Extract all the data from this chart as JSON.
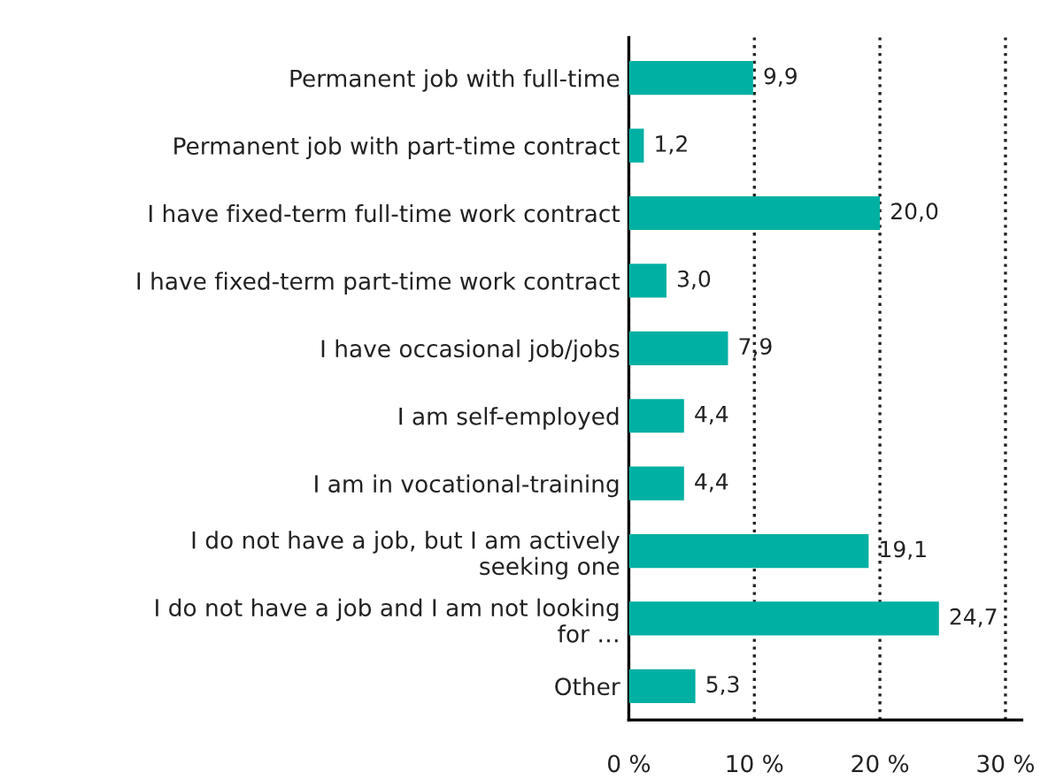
{
  "chart_data": {
    "type": "bar",
    "orientation": "horizontal",
    "categories": [
      "Permanent job with full-time",
      "Permanent job with part-time contract",
      "I have fixed-term full-time work contract",
      "I have fixed-term part-time work contract",
      "I have occasional job/jobs",
      "I am self-employed",
      "I am in vocational-training",
      "I do not have a job, but I am actively\nseeking one",
      "I do not have a job and I am not looking\nfor …",
      "Other"
    ],
    "values": [
      9.9,
      1.2,
      20.0,
      3.0,
      7.9,
      4.4,
      4.4,
      19.1,
      24.7,
      5.3
    ],
    "value_labels": [
      "9,9",
      "1,2",
      "20,0",
      "3,0",
      "7,9",
      "4,4",
      "4,4",
      "19,1",
      "24,7",
      "5,3"
    ],
    "color": "#00b0a2",
    "xlim": [
      0,
      31.3
    ],
    "xticks": [
      {
        "value": 0,
        "label": "0 %"
      },
      {
        "value": 10,
        "label": "10 %"
      },
      {
        "value": 20,
        "label": "20 %"
      },
      {
        "value": 30,
        "label": "30 %"
      }
    ],
    "grid": "x",
    "line_style": "dotted",
    "legend": false
  }
}
